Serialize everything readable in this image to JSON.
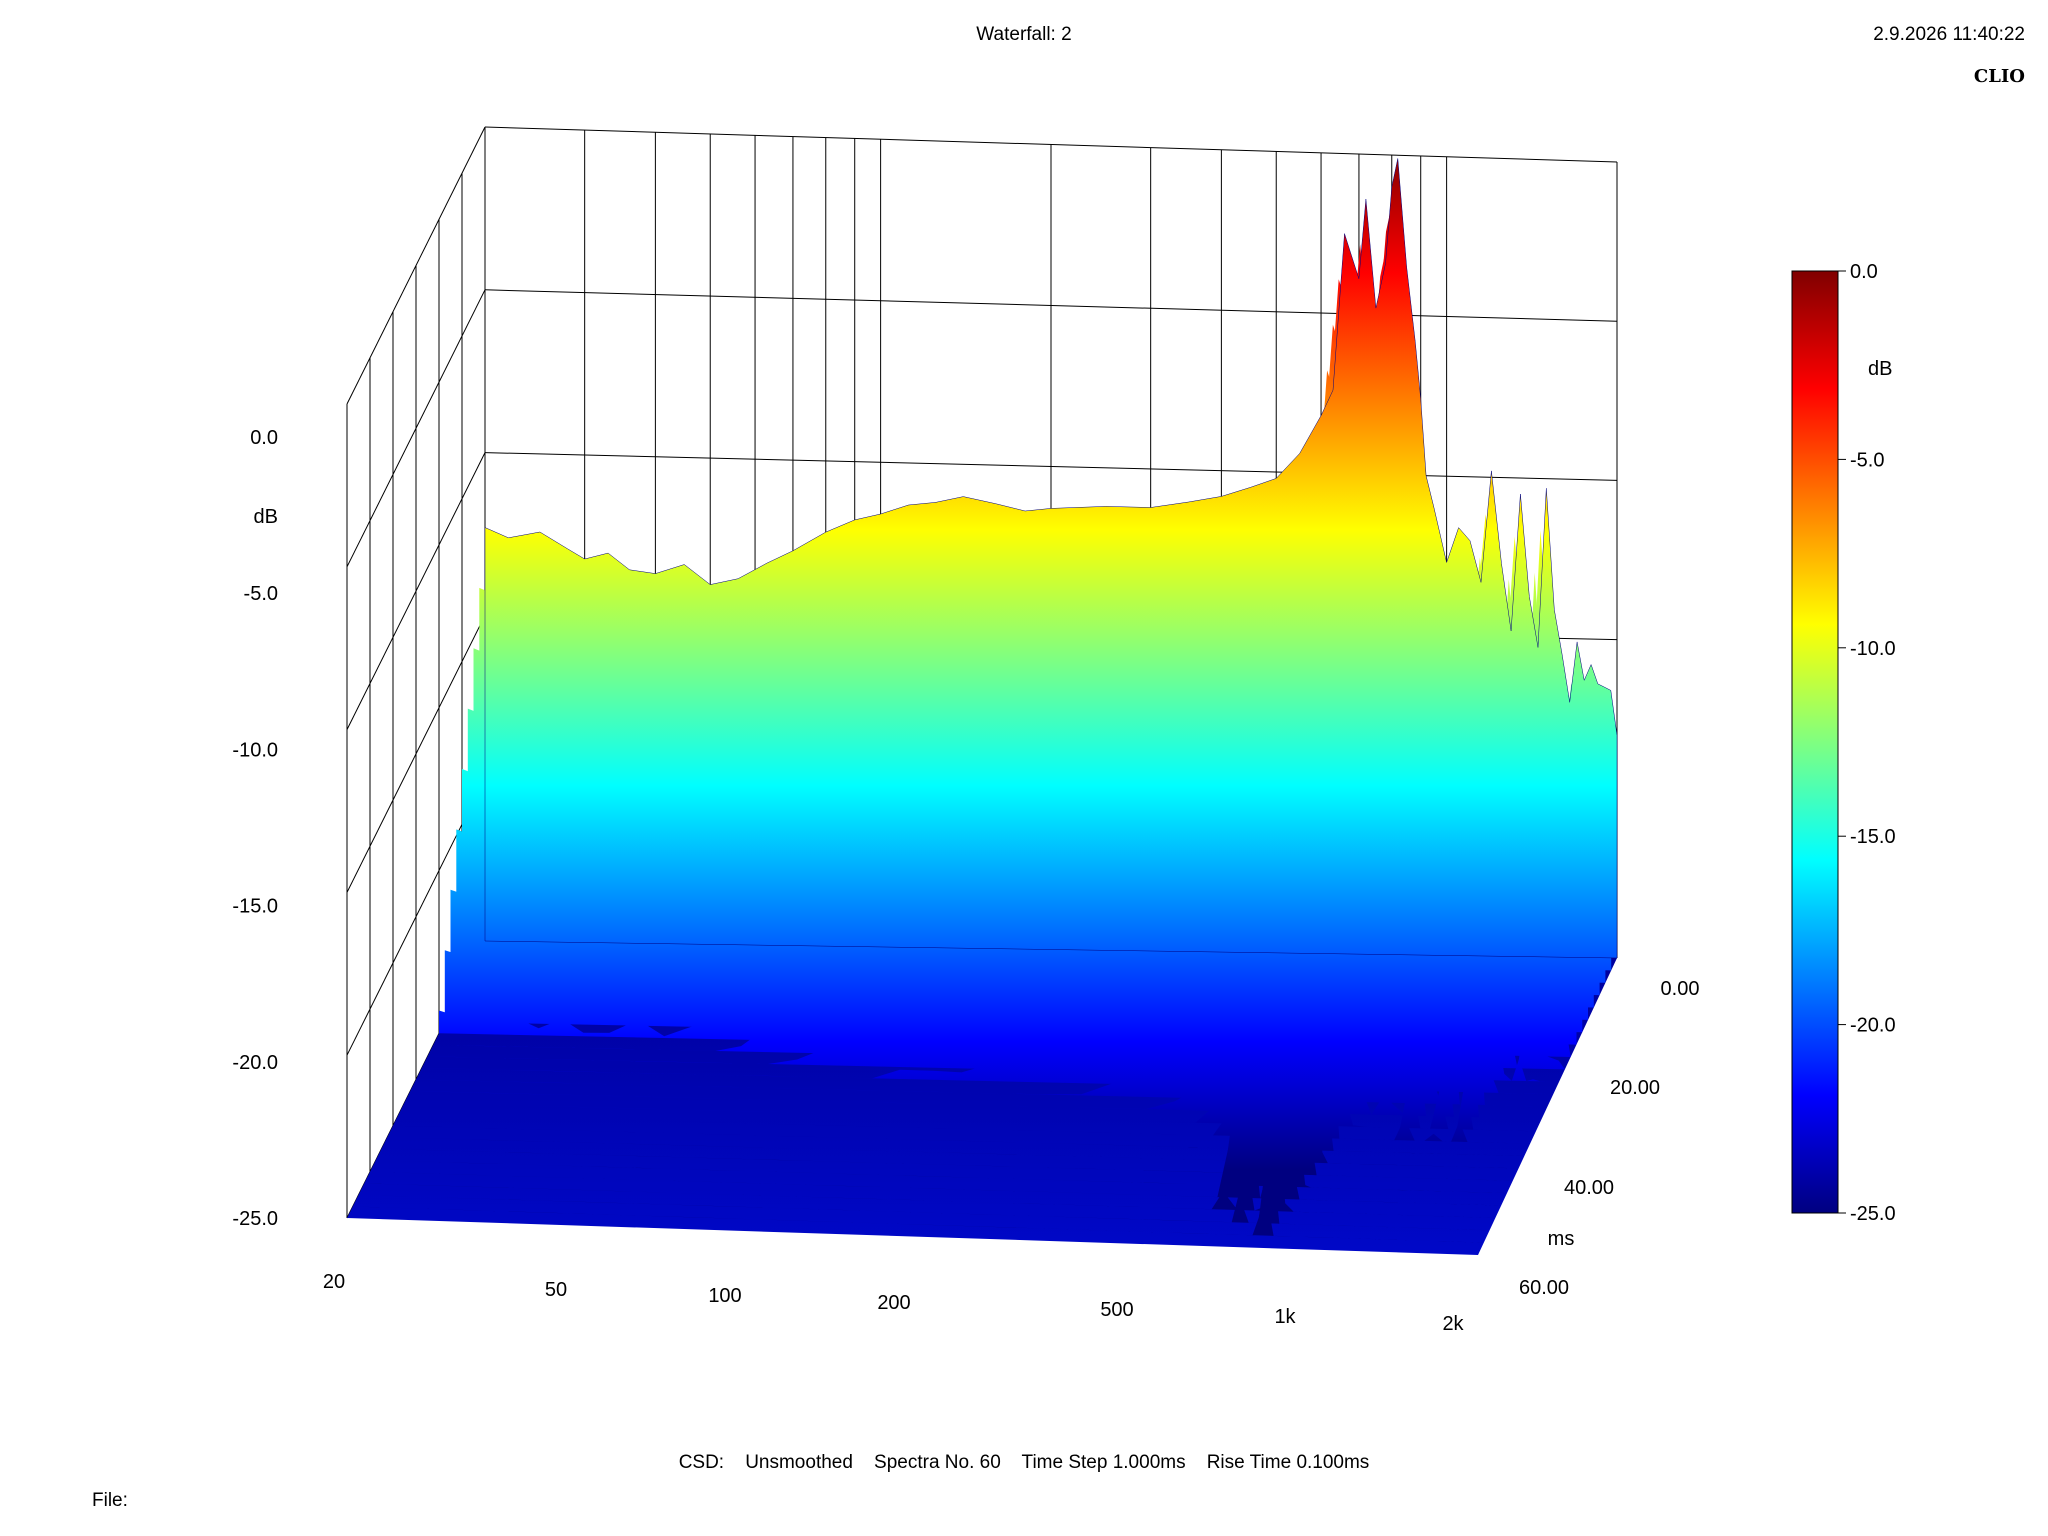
{
  "header": {
    "title": "Waterfall: 2",
    "timestamp": "2.9.2026 11:40:22",
    "brand": "CLIO"
  },
  "footer": {
    "info": "CSD:    Unsmoothed    Spectra No. 60    Time Step 1.000ms    Rise Time 0.100ms",
    "file_label": "File:"
  },
  "chart_data": {
    "type": "waterfall",
    "title": "Waterfall: 2",
    "z_axis": {
      "label": "dB",
      "ticks": [
        "0.0",
        "-5.0",
        "-10.0",
        "-15.0",
        "-20.0",
        "-25.0"
      ],
      "range": [
        -25,
        0
      ]
    },
    "x_axis": {
      "scale": "log",
      "ticks": [
        {
          "label": "20",
          "value": 20
        },
        {
          "label": "50",
          "value": 50
        },
        {
          "label": "100",
          "value": 100
        },
        {
          "label": "200",
          "value": 200
        },
        {
          "label": "500",
          "value": 500
        },
        {
          "label": "1k",
          "value": 1000
        },
        {
          "label": "2k",
          "value": 2000
        }
      ],
      "range": [
        20,
        2000
      ]
    },
    "y_axis": {
      "label": "ms",
      "ticks": [
        "0.00",
        "20.00",
        "40.00",
        "60.00"
      ],
      "range": [
        0,
        60
      ]
    },
    "colorbar": {
      "label": "dB",
      "ticks": [
        "0.0",
        "-5.0",
        "-10.0",
        "-15.0",
        "-20.0",
        "-25.0"
      ],
      "range": [
        -25,
        0
      ],
      "colors": [
        "#000080",
        "#0000ff",
        "#0080ff",
        "#00ffff",
        "#80ff80",
        "#ffff00",
        "#ff8000",
        "#ff0000",
        "#800000"
      ]
    },
    "spectra_count": 60,
    "time_step_ms": 1.0,
    "rise_time_ms": 0.1,
    "first_spectrum": {
      "frequencies": [
        20,
        22,
        25,
        28,
        30,
        33,
        36,
        40,
        45,
        50,
        56,
        63,
        70,
        80,
        90,
        100,
        112,
        125,
        140,
        160,
        180,
        200,
        250,
        300,
        350,
        400,
        450,
        500,
        550,
        600,
        630,
        660,
        700,
        720,
        750,
        780,
        800,
        820,
        850,
        880,
        900,
        920,
        950,
        1000,
        1050,
        1100,
        1150,
        1200,
        1250,
        1300,
        1350,
        1400,
        1450,
        1500,
        1550,
        1600,
        1650,
        1700,
        1750,
        1800,
        1850,
        1900,
        1950,
        2000
      ],
      "db": [
        -12.3,
        -12.6,
        -12.4,
        -12.9,
        -13.2,
        -13.0,
        -13.5,
        -13.6,
        -13.3,
        -13.9,
        -13.7,
        -13.2,
        -12.8,
        -12.2,
        -11.8,
        -11.6,
        -11.3,
        -11.2,
        -11.0,
        -11.2,
        -11.4,
        -11.3,
        -11.2,
        -11.2,
        -11.0,
        -10.8,
        -10.5,
        -10.2,
        -9.4,
        -8.2,
        -7.4,
        -2.5,
        -3.9,
        -1.4,
        -4.8,
        -3.4,
        -1.0,
        -0.1,
        -3.5,
        -5.8,
        -7.6,
        -10.0,
        -11.0,
        -12.7,
        -11.6,
        -12.0,
        -13.3,
        -9.8,
        -12.7,
        -14.8,
        -10.5,
        -13.7,
        -15.3,
        -10.3,
        -14.1,
        -15.5,
        -17.0,
        -15.1,
        -16.3,
        -15.8,
        -16.4,
        -16.5,
        -16.6,
        -18.0
      ]
    }
  }
}
